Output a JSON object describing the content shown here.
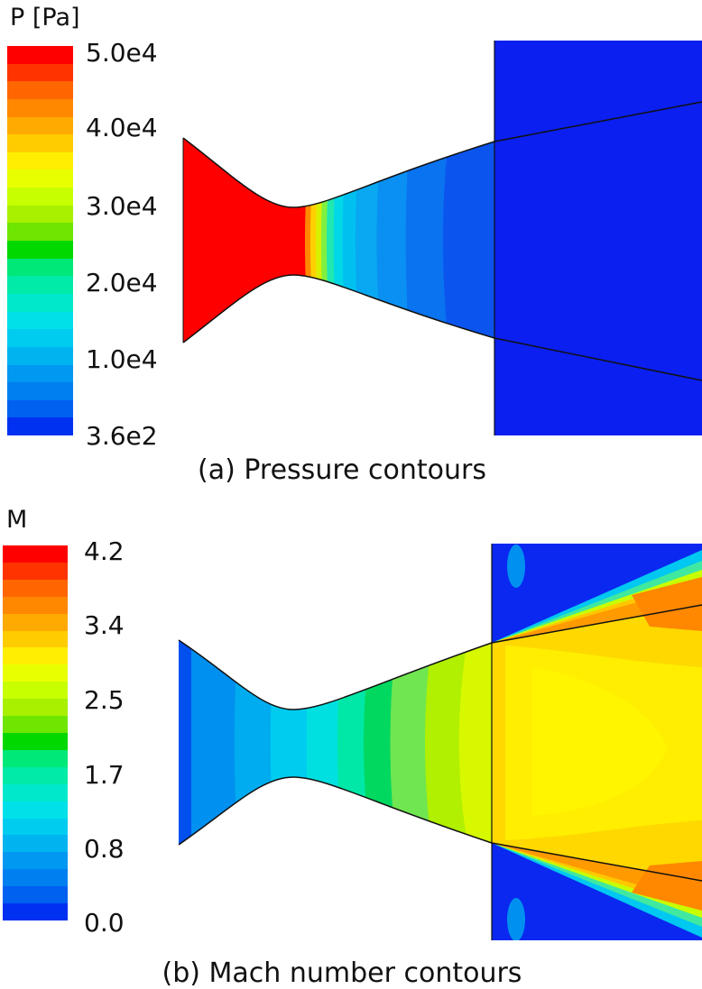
{
  "pressure": {
    "legend_title": "P [Pa]",
    "ticks": [
      "5.0e4",
      "4.0e4",
      "3.0e4",
      "2.0e4",
      "1.0e4",
      "3.6e2"
    ],
    "caption": "(a) Pressure contours",
    "colors": [
      "#ff0000",
      "#ff3300",
      "#ff6600",
      "#ff8800",
      "#ffaa00",
      "#ffcc00",
      "#ffee00",
      "#e8ff00",
      "#c8ff00",
      "#a8f000",
      "#6ee600",
      "#00d800",
      "#00e878",
      "#00eaa8",
      "#00e8cc",
      "#00e0e8",
      "#00ccf0",
      "#00b4f0",
      "#0098f0",
      "#0080f0",
      "#0060f0",
      "#0030f0"
    ]
  },
  "mach": {
    "legend_title": "M",
    "ticks": [
      "4.2",
      "3.4",
      "2.5",
      "1.7",
      "0.8",
      "0.0"
    ],
    "caption": "(b) Mach number contours",
    "colors": [
      "#ff0000",
      "#ff3300",
      "#ff6600",
      "#ff8800",
      "#ffaa00",
      "#ffcc00",
      "#ffee00",
      "#e8ff00",
      "#c8ff00",
      "#a8f000",
      "#6ee600",
      "#00d800",
      "#00e878",
      "#00eaa8",
      "#00e8cc",
      "#00e0e8",
      "#00ccf0",
      "#00b4f0",
      "#0098f0",
      "#0080f0",
      "#0060f0",
      "#0030f0"
    ]
  }
}
